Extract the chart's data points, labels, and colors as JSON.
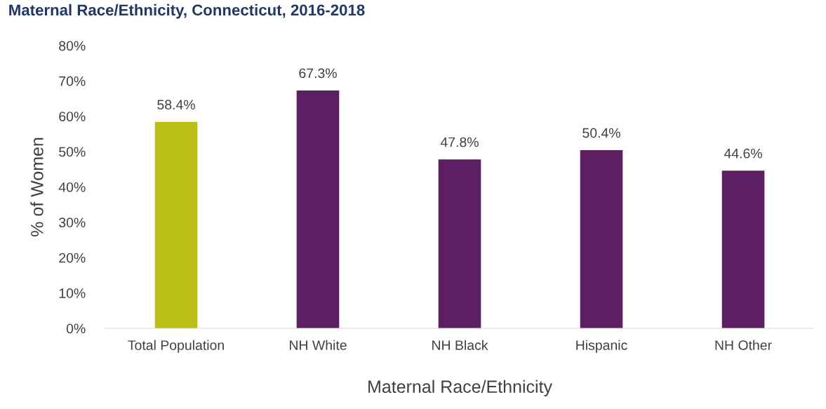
{
  "chart_data": {
    "type": "bar",
    "title": "Maternal Race/Ethnicity, Connecticut, 2016-2018",
    "xlabel": "Maternal Race/Ethnicity",
    "ylabel": "% of Women",
    "categories": [
      "Total Population",
      "NH White",
      "NH Black",
      "Hispanic",
      "NH Other"
    ],
    "values": [
      58.4,
      67.3,
      47.8,
      50.4,
      44.6
    ],
    "colors": [
      "#b9bf15",
      "#5c2062",
      "#5c2062",
      "#5c2062",
      "#5c2062"
    ],
    "value_labels": [
      "58.4%",
      "67.3%",
      "47.8%",
      "50.4%",
      "44.6%"
    ],
    "ylim": [
      0,
      80
    ],
    "yticks": [
      {
        "value": 0,
        "label": "0%"
      },
      {
        "value": 10,
        "label": "10%"
      },
      {
        "value": 20,
        "label": "20%"
      },
      {
        "value": 30,
        "label": "30%"
      },
      {
        "value": 40,
        "label": "40%"
      },
      {
        "value": 50,
        "label": "50%"
      },
      {
        "value": 60,
        "label": "60%"
      },
      {
        "value": 70,
        "label": "70%"
      },
      {
        "value": 80,
        "label": "80%"
      }
    ],
    "grid": false,
    "legend": false
  }
}
